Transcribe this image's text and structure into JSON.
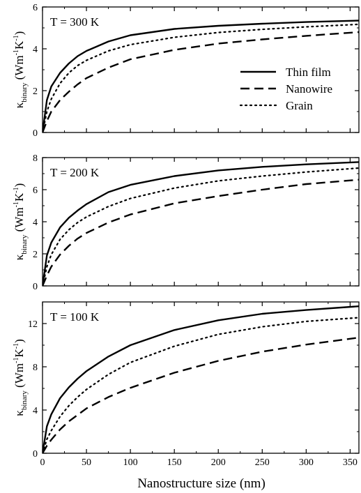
{
  "chart_data": [
    {
      "type": "line",
      "panel_label": "T = 300 K",
      "xlabel": "",
      "ylabel": {
        "base": "κ",
        "sub": "binary",
        "unit_pre": "(Wm",
        "sup1": "-1",
        "unit_mid": "K",
        "sup2": "-1",
        "unit_post": ")"
      },
      "xlim": [
        0,
        360
      ],
      "ylim": [
        0,
        6
      ],
      "xticks": [
        0,
        50,
        100,
        150,
        200,
        250,
        300,
        350
      ],
      "yticks": [
        0,
        2,
        4,
        6
      ],
      "show_x_tick_labels": false,
      "legend": {
        "position": "right-middle",
        "entries": [
          "Thin film",
          "Nanowire",
          "Grain"
        ]
      },
      "series": [
        {
          "name": "Thin film",
          "style": "solid",
          "x": [
            0,
            5,
            10,
            20,
            30,
            40,
            50,
            75,
            100,
            150,
            200,
            250,
            300,
            360
          ],
          "y": [
            0,
            1.55,
            2.2,
            2.85,
            3.3,
            3.65,
            3.9,
            4.35,
            4.65,
            4.95,
            5.1,
            5.2,
            5.28,
            5.35
          ]
        },
        {
          "name": "Nanowire",
          "style": "dashed",
          "x": [
            0,
            5,
            10,
            20,
            30,
            40,
            50,
            75,
            100,
            150,
            200,
            250,
            300,
            360
          ],
          "y": [
            0,
            0.55,
            1.0,
            1.55,
            1.95,
            2.3,
            2.6,
            3.1,
            3.5,
            3.95,
            4.25,
            4.45,
            4.62,
            4.8
          ]
        },
        {
          "name": "Grain",
          "style": "dotted",
          "x": [
            0,
            5,
            10,
            20,
            30,
            40,
            50,
            75,
            100,
            150,
            200,
            250,
            300,
            360
          ],
          "y": [
            0,
            1.0,
            1.6,
            2.35,
            2.85,
            3.2,
            3.45,
            3.9,
            4.2,
            4.55,
            4.78,
            4.93,
            5.05,
            5.17
          ]
        }
      ]
    },
    {
      "type": "line",
      "panel_label": "T = 200 K",
      "xlabel": "",
      "ylabel": {
        "base": "κ",
        "sub": "binary",
        "unit_pre": "(Wm",
        "sup1": "-1",
        "unit_mid": "K",
        "sup2": "-1",
        "unit_post": ")"
      },
      "xlim": [
        0,
        360
      ],
      "ylim": [
        0,
        8
      ],
      "xticks": [
        0,
        50,
        100,
        150,
        200,
        250,
        300,
        350
      ],
      "yticks": [
        0,
        2,
        4,
        6,
        8
      ],
      "show_x_tick_labels": false,
      "series": [
        {
          "name": "Thin film",
          "style": "solid",
          "x": [
            0,
            5,
            10,
            20,
            30,
            40,
            50,
            75,
            100,
            150,
            200,
            250,
            300,
            360
          ],
          "y": [
            0,
            1.9,
            2.7,
            3.65,
            4.25,
            4.7,
            5.1,
            5.85,
            6.3,
            6.85,
            7.2,
            7.42,
            7.58,
            7.72
          ]
        },
        {
          "name": "Nanowire",
          "style": "dashed",
          "x": [
            0,
            5,
            10,
            20,
            30,
            40,
            50,
            75,
            100,
            150,
            200,
            250,
            300,
            360
          ],
          "y": [
            0,
            0.65,
            1.2,
            1.95,
            2.5,
            2.95,
            3.3,
            3.95,
            4.45,
            5.15,
            5.6,
            6.0,
            6.35,
            6.62
          ]
        },
        {
          "name": "Grain",
          "style": "dotted",
          "x": [
            0,
            5,
            10,
            20,
            30,
            40,
            50,
            75,
            100,
            150,
            200,
            250,
            300,
            360
          ],
          "y": [
            0,
            1.2,
            1.95,
            2.9,
            3.5,
            3.95,
            4.3,
            4.95,
            5.45,
            6.1,
            6.55,
            6.85,
            7.1,
            7.35
          ]
        }
      ]
    },
    {
      "type": "line",
      "panel_label": "T = 100 K",
      "xlabel": "Nanostructure size (nm)",
      "ylabel": {
        "base": "κ",
        "sub": "binary",
        "unit_pre": "(Wm",
        "sup1": "-1",
        "unit_mid": "K",
        "sup2": "-1",
        "unit_post": ")"
      },
      "xlim": [
        0,
        360
      ],
      "ylim": [
        0,
        14
      ],
      "xticks": [
        0,
        50,
        100,
        150,
        200,
        250,
        300,
        350
      ],
      "yticks": [
        0,
        4,
        8,
        12
      ],
      "show_x_tick_labels": true,
      "series": [
        {
          "name": "Thin film",
          "style": "solid",
          "x": [
            0,
            5,
            10,
            20,
            30,
            40,
            50,
            75,
            100,
            150,
            200,
            250,
            300,
            360
          ],
          "y": [
            0,
            2.5,
            3.6,
            5.1,
            6.1,
            6.9,
            7.6,
            8.95,
            10.0,
            11.4,
            12.3,
            12.9,
            13.25,
            13.6
          ]
        },
        {
          "name": "Nanowire",
          "style": "dashed",
          "x": [
            0,
            5,
            10,
            20,
            30,
            40,
            50,
            75,
            100,
            150,
            200,
            250,
            300,
            360
          ],
          "y": [
            0,
            0.7,
            1.25,
            2.2,
            2.95,
            3.55,
            4.15,
            5.2,
            6.05,
            7.45,
            8.55,
            9.4,
            10.05,
            10.7
          ]
        },
        {
          "name": "Grain",
          "style": "dotted",
          "x": [
            0,
            5,
            10,
            20,
            30,
            40,
            50,
            75,
            100,
            150,
            200,
            250,
            300,
            360
          ],
          "y": [
            0,
            1.3,
            2.1,
            3.4,
            4.4,
            5.2,
            5.9,
            7.3,
            8.4,
            9.9,
            11.0,
            11.7,
            12.2,
            12.55
          ]
        }
      ]
    }
  ]
}
